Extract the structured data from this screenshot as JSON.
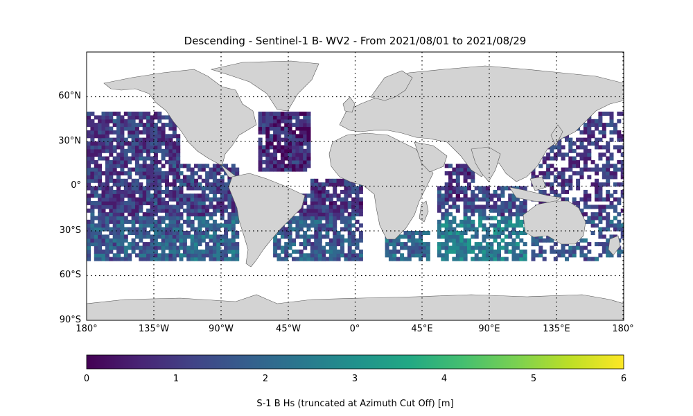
{
  "title": "Descending - Sentinel-1 B- WV2 - From 2021/08/01 to 2021/08/29",
  "map": {
    "projection": "PlateCarree",
    "lat_ticks": [
      "60°N",
      "30°N",
      "0°",
      "30°S",
      "60°S",
      "90°S"
    ],
    "lon_ticks": [
      "180°",
      "135°W",
      "90°W",
      "45°W",
      "0°",
      "45°E",
      "90°E",
      "135°E",
      "180°"
    ],
    "land_color": "#d3d3d3",
    "grid": "dotted",
    "data_extent": "ocean swaths between 50°N and 50°S"
  },
  "colorbar": {
    "label": "S-1 B Hs (truncated at Azimuth Cut Off) [m]",
    "colormap": "viridis",
    "min": 0,
    "max": 6,
    "ticks": [
      "0",
      "1",
      "2",
      "3",
      "4",
      "5",
      "6"
    ]
  }
}
